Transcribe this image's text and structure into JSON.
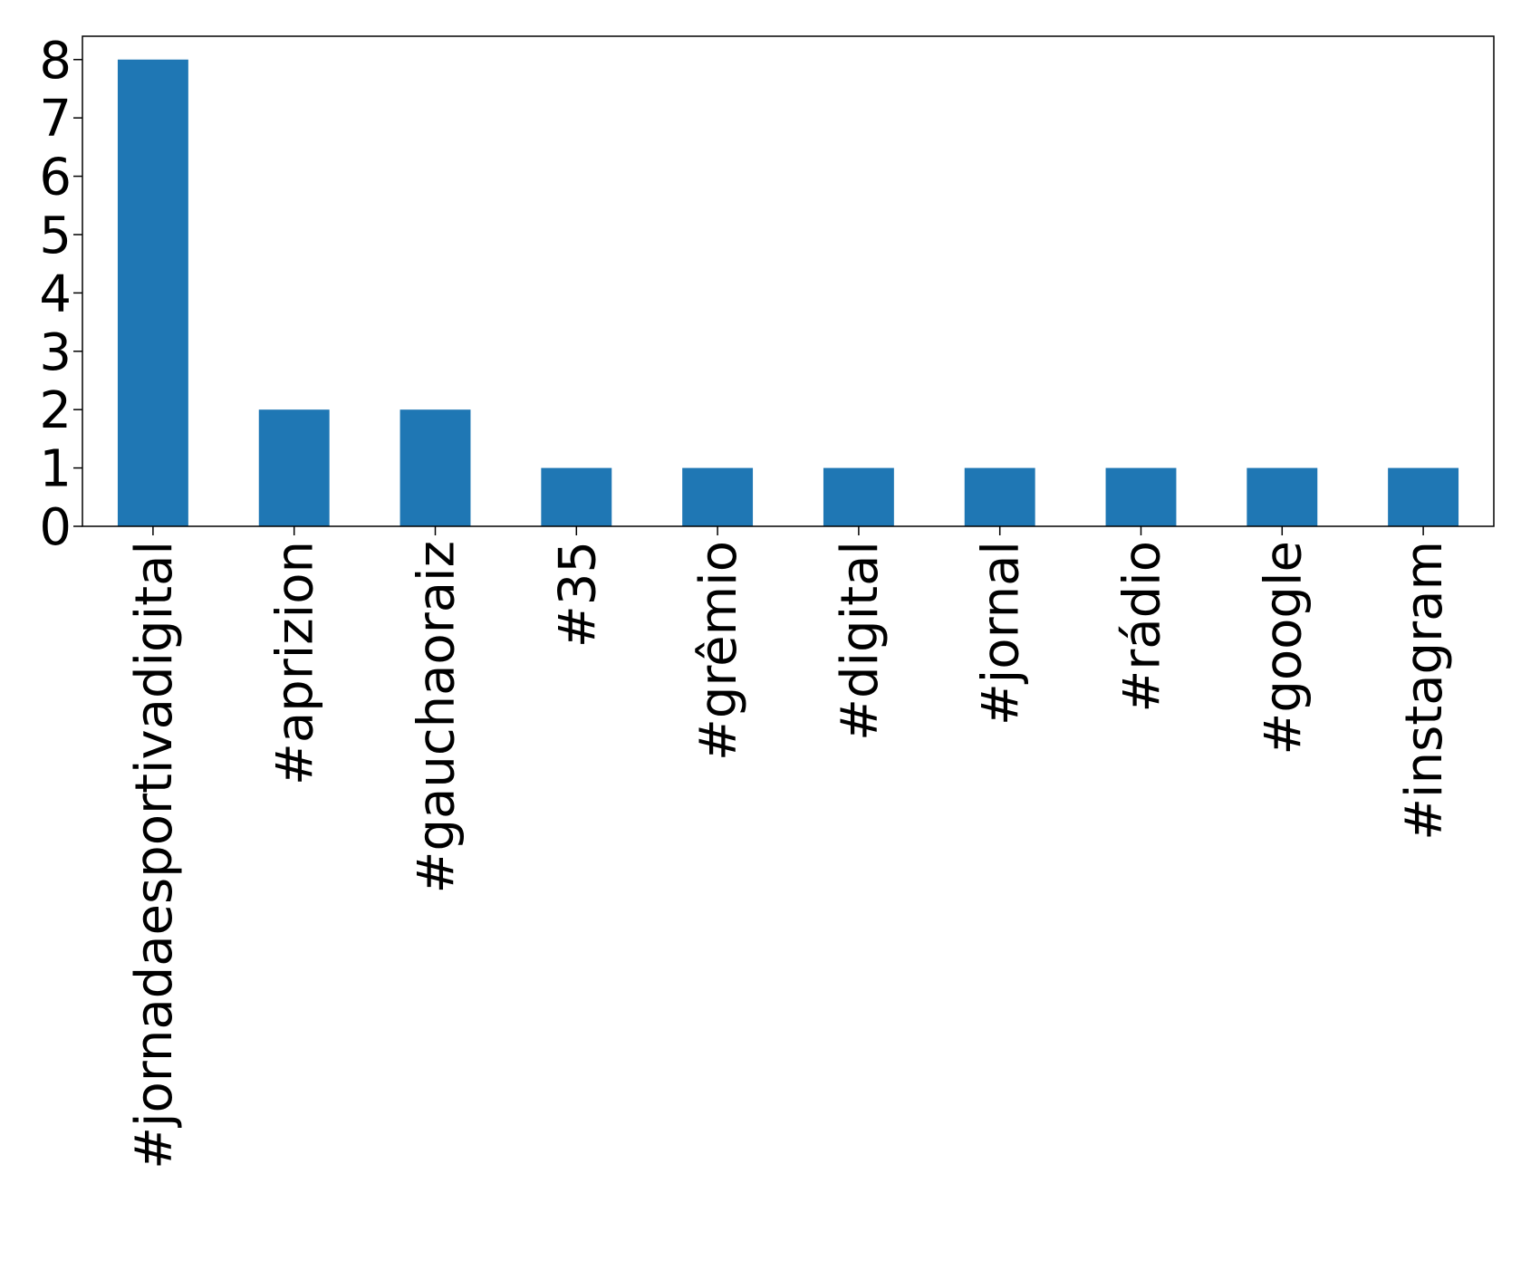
{
  "chart_data": {
    "type": "bar",
    "title": "",
    "xlabel": "",
    "ylabel": "",
    "categories": [
      "#jornadaesportivadigital",
      "#aprizion",
      "#gauchaoraiz",
      "#35",
      "#grêmio",
      "#digital",
      "#jornal",
      "#rádio",
      "#google",
      "#instagram"
    ],
    "values": [
      8,
      2,
      2,
      1,
      1,
      1,
      1,
      1,
      1,
      1
    ],
    "ylim": [
      0,
      8.4
    ],
    "yticks": [
      0,
      1,
      2,
      3,
      4,
      5,
      6,
      7,
      8
    ],
    "grid": false,
    "legend": "none",
    "bar_color": "#1f77b4"
  }
}
